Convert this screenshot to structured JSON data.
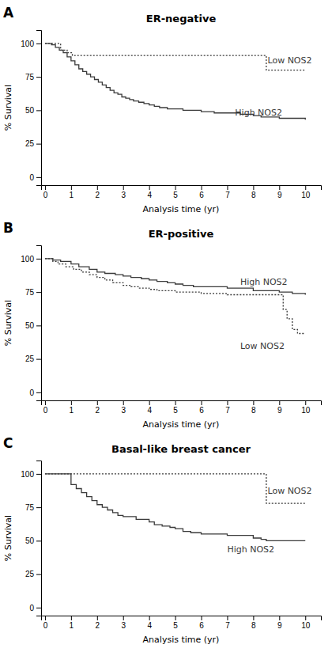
{
  "chart_data": [
    {
      "type": "step",
      "panel_label": "A",
      "title": "ER-negative",
      "xlabel": "Analysis time (yr)",
      "ylabel": "% Survival",
      "color": "#3a3a3a",
      "grid": false,
      "xlim": [
        -0.15,
        10.6
      ],
      "xticks": [
        0,
        1,
        2,
        3,
        4,
        5,
        6,
        7,
        8,
        9,
        10
      ],
      "ylim": [
        -6,
        110
      ],
      "yticks": [
        0,
        25,
        50,
        75,
        100
      ],
      "series": [
        {
          "line_style": "solid",
          "x": [
            0,
            0.25,
            0.4,
            0.55,
            0.7,
            0.85,
            1.0,
            1.15,
            1.3,
            1.45,
            1.6,
            1.75,
            1.9,
            2.05,
            2.2,
            2.35,
            2.5,
            2.65,
            2.8,
            2.95,
            3.1,
            3.25,
            3.4,
            3.6,
            3.8,
            4.0,
            4.2,
            4.4,
            4.7,
            5.0,
            5.3,
            5.6,
            6.0,
            6.5,
            7.0,
            7.5,
            8.0,
            8.3,
            9.0,
            9.5,
            10.0
          ],
          "values": [
            100,
            99,
            97,
            95,
            93,
            90,
            87,
            84,
            81,
            79,
            77,
            75,
            73,
            71,
            69,
            67,
            65,
            63,
            62,
            60,
            59,
            58,
            57,
            56,
            55,
            54,
            53,
            52,
            51,
            51,
            50,
            50,
            49,
            48,
            48,
            47,
            46,
            45,
            44,
            44,
            43
          ]
        },
        {
          "line_style": "dotted",
          "x": [
            0,
            0.35,
            0.6,
            0.85,
            1.05,
            1.2,
            8.3,
            8.5,
            10.0
          ],
          "values": [
            100,
            100,
            95,
            93,
            91,
            91,
            91,
            80,
            80
          ]
        }
      ],
      "annotations": [
        {
          "text": "High NOS2",
          "x": 7.3,
          "y": 48
        },
        {
          "text": "Low NOS2",
          "x": 8.55,
          "y": 87
        }
      ]
    },
    {
      "type": "step",
      "panel_label": "B",
      "title": "ER-positive",
      "xlabel": "Analysis time (yr)",
      "ylabel": "% Survival",
      "color": "#3a3a3a",
      "grid": false,
      "xlim": [
        -0.15,
        10.6
      ],
      "xticks": [
        0,
        1,
        2,
        3,
        4,
        5,
        6,
        7,
        8,
        9,
        10
      ],
      "ylim": [
        -6,
        110
      ],
      "yticks": [
        0,
        25,
        50,
        75,
        100
      ],
      "series": [
        {
          "line_style": "solid",
          "x": [
            0,
            0.3,
            0.6,
            1.0,
            1.3,
            1.7,
            2.0,
            2.3,
            2.7,
            3.0,
            3.3,
            3.7,
            4.0,
            4.3,
            4.7,
            5.0,
            5.3,
            5.7,
            6.0,
            7.0,
            8.0,
            9.0,
            9.5,
            10.0
          ],
          "values": [
            100,
            99,
            98,
            96,
            94,
            92,
            90,
            89,
            88,
            87,
            86,
            85,
            84,
            83,
            82,
            81,
            80,
            79,
            79,
            78,
            76,
            75,
            74,
            73
          ]
        },
        {
          "line_style": "dotted",
          "x": [
            0,
            0.3,
            0.5,
            0.8,
            1.1,
            1.4,
            1.7,
            2.0,
            2.3,
            2.6,
            3.0,
            3.3,
            3.6,
            4.0,
            4.3,
            4.7,
            5.0,
            5.5,
            6.0,
            7.0,
            8.5,
            9.0,
            9.15,
            9.3,
            9.5,
            9.7,
            10.0
          ],
          "values": [
            100,
            98,
            96,
            94,
            92,
            90,
            88,
            86,
            84,
            82,
            80,
            79,
            78,
            77,
            76,
            76,
            75,
            75,
            74,
            73,
            73,
            73,
            62,
            55,
            47,
            44,
            44
          ]
        }
      ],
      "annotations": [
        {
          "text": "High NOS2",
          "x": 7.5,
          "y": 82
        },
        {
          "text": "Low NOS2",
          "x": 7.5,
          "y": 34
        }
      ]
    },
    {
      "type": "step",
      "panel_label": "C",
      "title": "Basal-like breast cancer",
      "xlabel": "Analysis time (yr)",
      "ylabel": "% Survival",
      "color": "#3a3a3a",
      "grid": false,
      "xlim": [
        -0.15,
        10.6
      ],
      "xticks": [
        0,
        1,
        2,
        3,
        4,
        5,
        6,
        7,
        8,
        9,
        10
      ],
      "ylim": [
        -6,
        110
      ],
      "yticks": [
        0,
        25,
        50,
        75,
        100
      ],
      "series": [
        {
          "line_style": "solid",
          "x": [
            0,
            0.8,
            1.0,
            1.2,
            1.4,
            1.6,
            1.8,
            2.0,
            2.2,
            2.4,
            2.6,
            2.8,
            3.0,
            3.5,
            4.0,
            4.2,
            4.5,
            4.8,
            5.0,
            5.3,
            5.6,
            6.0,
            7.0,
            8.0,
            8.3,
            8.5,
            9.0,
            10.0
          ],
          "values": [
            100,
            100,
            92,
            89,
            86,
            83,
            80,
            77,
            75,
            73,
            71,
            69,
            68,
            66,
            64,
            62,
            61,
            60,
            59,
            57,
            56,
            55,
            54,
            52,
            51,
            50,
            50,
            50
          ]
        },
        {
          "line_style": "dotted",
          "x": [
            0,
            0.8,
            8.3,
            8.5,
            10.0
          ],
          "values": [
            100,
            100,
            100,
            78,
            78
          ]
        }
      ],
      "annotations": [
        {
          "text": "High NOS2",
          "x": 7.0,
          "y": 43
        },
        {
          "text": "Low NOS2",
          "x": 8.55,
          "y": 87
        }
      ]
    }
  ]
}
